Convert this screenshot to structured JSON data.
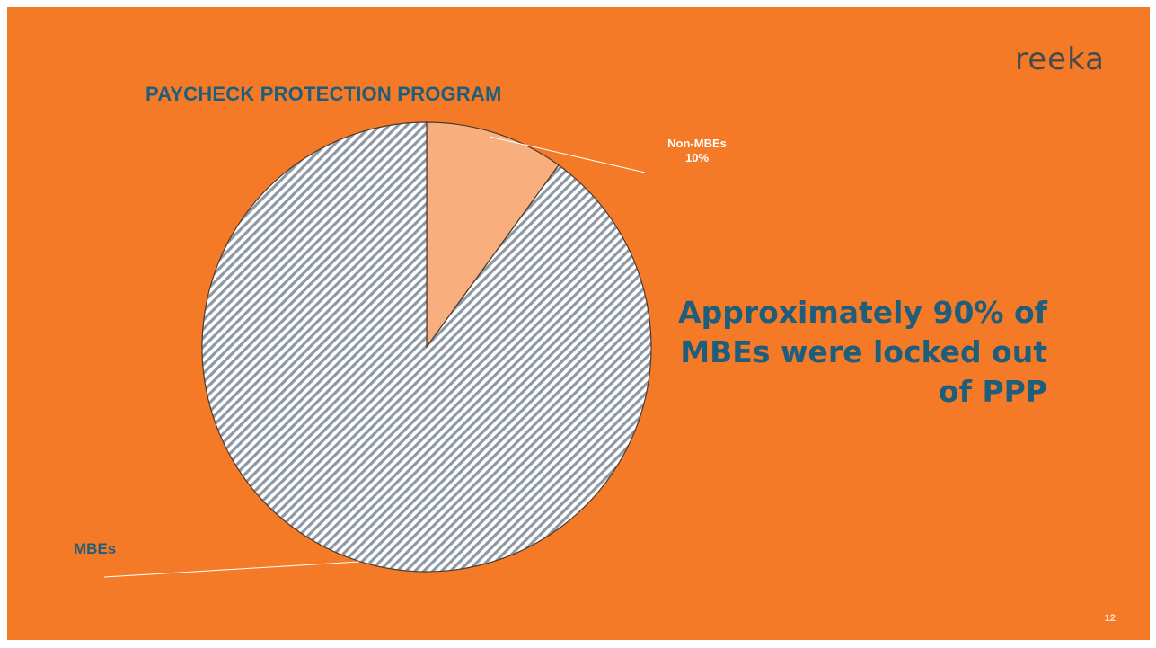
{
  "slide": {
    "logo": "reeka",
    "headline": "Approximately 90% of MBEs were locked out of PPP",
    "page_number": "12",
    "background_color": "#F47A28"
  },
  "chart_data": {
    "type": "pie",
    "title": "PAYCHECK PROTECTION PROGRAM",
    "slices": [
      {
        "label": "Non-MBEs",
        "value": 10,
        "value_label": "10%",
        "color": "#F9AF7D"
      },
      {
        "label": "MBEs",
        "value": 90,
        "value_label": "",
        "color": "#9AA4B0",
        "pattern": "diagonal-stripes"
      }
    ],
    "label_color_non_mbe": "#FFFFFF",
    "label_color_mbe": "#1F5E7B"
  }
}
